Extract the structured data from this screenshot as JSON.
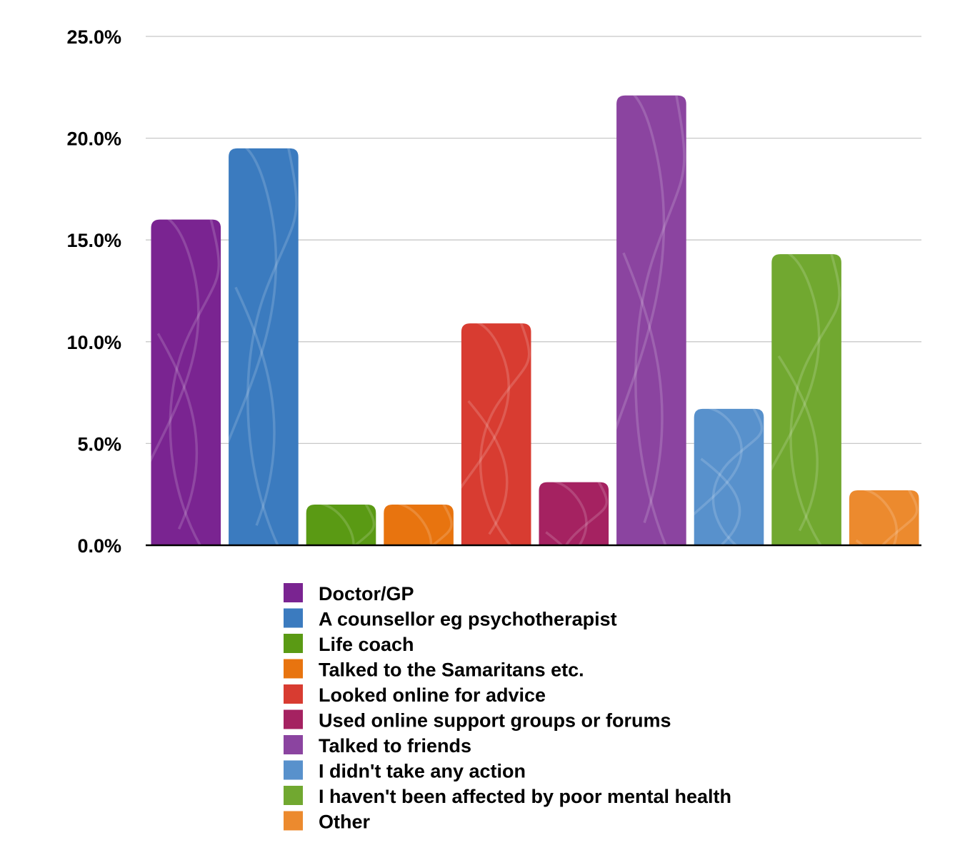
{
  "chart_data": {
    "type": "bar",
    "title": "",
    "xlabel": "",
    "ylabel": "",
    "ylim": [
      0,
      25
    ],
    "yticks": [
      "0.0%",
      "5.0%",
      "10.0%",
      "15.0%",
      "20.0%",
      "25.0%"
    ],
    "grid": true,
    "legend_position": "bottom",
    "categories": [
      "Doctor/GP",
      "A counsellor eg psychotherapist",
      "Life coach",
      "Talked to the Samaritans etc.",
      "Looked online for advice",
      "Used online support groups or forums",
      "Talked to friends",
      "I didn't take any action",
      "I haven't been affected by poor mental health",
      "Other"
    ],
    "values": [
      16.0,
      19.5,
      2.0,
      2.0,
      10.9,
      3.1,
      22.1,
      6.7,
      14.3,
      2.7
    ],
    "colors": [
      "#7a2491",
      "#3b7bbf",
      "#5a9a14",
      "#e8740f",
      "#d83c31",
      "#a52261",
      "#8b44a0",
      "#5891cc",
      "#71a830",
      "#ec8a2e"
    ]
  }
}
